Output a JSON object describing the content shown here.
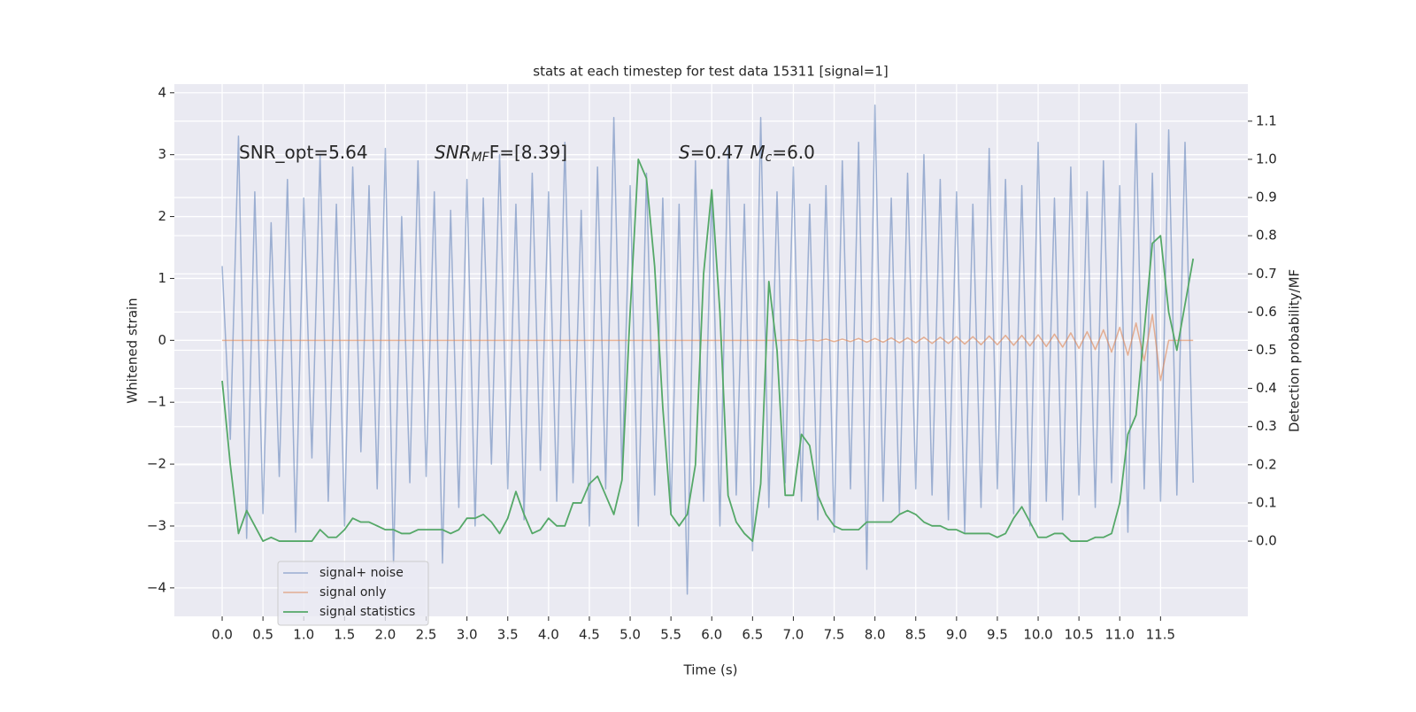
{
  "chart_data": {
    "type": "line",
    "title": "stats at each timestep for test data 15311 [signal=1]",
    "xlabel": "Time (s)",
    "ylabel": "Whitened strain",
    "y2label": "Detection probability/MF",
    "annotations": [
      [
        {
          "text": "SNR_opt=5.64"
        }
      ],
      [
        {
          "text": "SNR",
          "style": "italic"
        },
        {
          "text": "MF",
          "style": "italic-sub"
        },
        {
          "text": "F=[8.39]"
        }
      ],
      [
        {
          "text": "S",
          "style": "italic"
        },
        {
          "text": "=0.47   "
        },
        {
          "text": "M",
          "style": "italic"
        },
        {
          "text": "c",
          "style": "italic-sub"
        },
        {
          "text": "=6.0"
        }
      ]
    ],
    "x": [
      0.0,
      0.1,
      0.2,
      0.3,
      0.4,
      0.5,
      0.6,
      0.7,
      0.8,
      0.9,
      1.0,
      1.1,
      1.2,
      1.3,
      1.4,
      1.5,
      1.6,
      1.7,
      1.8,
      1.9,
      2.0,
      2.1,
      2.2,
      2.3,
      2.4,
      2.5,
      2.6,
      2.7,
      2.8,
      2.9,
      3.0,
      3.1,
      3.2,
      3.3,
      3.4,
      3.5,
      3.6,
      3.7,
      3.8,
      3.9,
      4.0,
      4.1,
      4.2,
      4.3,
      4.4,
      4.5,
      4.6,
      4.7,
      4.8,
      4.9,
      5.0,
      5.1,
      5.2,
      5.3,
      5.4,
      5.5,
      5.6,
      5.7,
      5.8,
      5.9,
      6.0,
      6.1,
      6.2,
      6.3,
      6.4,
      6.5,
      6.6,
      6.7,
      6.8,
      6.9,
      7.0,
      7.1,
      7.2,
      7.3,
      7.4,
      7.5,
      7.6,
      7.7,
      7.8,
      7.9,
      8.0,
      8.1,
      8.2,
      8.3,
      8.4,
      8.5,
      8.6,
      8.7,
      8.8,
      8.9,
      9.0,
      9.1,
      9.2,
      9.3,
      9.4,
      9.5,
      9.6,
      9.7,
      9.8,
      9.9,
      10.0,
      10.1,
      10.2,
      10.3,
      10.4,
      10.5,
      10.6,
      10.7,
      10.8,
      10.9,
      11.0,
      11.1,
      11.2,
      11.3,
      11.4,
      11.5,
      11.6,
      11.7,
      11.8,
      11.9
    ],
    "series": [
      {
        "name": "signal+ noise",
        "color": "#4c72b0",
        "values": [
          1.2,
          -1.6,
          3.3,
          -3.2,
          2.4,
          -2.8,
          1.9,
          -2.2,
          2.6,
          -3.1,
          2.3,
          -1.9,
          3.0,
          -2.6,
          2.2,
          -3.0,
          2.8,
          -1.8,
          2.5,
          -2.4,
          3.1,
          -3.6,
          2.0,
          -2.3,
          2.9,
          -2.2,
          2.4,
          -3.6,
          2.1,
          -2.7,
          2.6,
          -3.0,
          2.3,
          -2.0,
          3.0,
          -2.4,
          2.2,
          -2.9,
          2.7,
          -2.1,
          2.4,
          -2.6,
          3.2,
          -2.3,
          2.1,
          -3.0,
          2.8,
          -2.4,
          3.6,
          -2.2,
          2.5,
          -3.0,
          2.7,
          -2.5,
          2.3,
          -2.8,
          2.2,
          -4.1,
          2.9,
          -2.6,
          2.4,
          -3.0,
          3.1,
          -2.5,
          2.2,
          -3.4,
          3.6,
          -2.7,
          2.4,
          -2.3,
          2.8,
          -2.6,
          2.2,
          -2.9,
          2.5,
          -3.1,
          2.9,
          -2.4,
          3.2,
          -3.7,
          3.8,
          -2.6,
          2.3,
          -2.8,
          2.7,
          -2.4,
          3.0,
          -2.5,
          2.6,
          -2.9,
          2.4,
          -3.1,
          2.2,
          -2.7,
          3.1,
          -2.4,
          2.6,
          -2.8,
          2.5,
          -3.0,
          3.2,
          -2.6,
          2.3,
          -2.9,
          2.8,
          -2.5,
          2.4,
          -2.7,
          2.9,
          -2.3,
          2.5,
          -3.1,
          3.5,
          -2.4,
          2.7,
          -2.6,
          3.4,
          -2.5,
          3.2,
          -2.3
        ]
      },
      {
        "name": "signal only",
        "color": "#dd8452",
        "values": [
          0,
          0,
          0,
          0,
          0,
          0,
          0,
          0,
          0,
          0,
          0,
          0,
          0,
          0,
          0,
          0,
          0,
          0,
          0,
          0,
          0,
          0,
          0,
          0,
          0,
          0,
          0,
          0,
          0,
          0,
          0,
          0,
          0,
          0,
          0,
          0,
          0,
          0,
          0,
          0,
          0,
          0,
          0,
          0,
          0,
          0,
          0,
          0,
          0,
          0,
          0,
          0,
          0,
          0,
          0,
          0,
          0,
          0,
          0,
          0,
          0,
          0,
          0,
          0,
          0,
          0,
          0,
          0,
          0,
          0,
          0.01,
          -0.01,
          0.01,
          -0.01,
          0.02,
          -0.02,
          0.02,
          -0.02,
          0.03,
          -0.03,
          0.03,
          -0.03,
          0.04,
          -0.04,
          0.04,
          -0.04,
          0.05,
          -0.05,
          0.05,
          -0.05,
          0.06,
          -0.06,
          0.06,
          -0.07,
          0.07,
          -0.07,
          0.08,
          -0.08,
          0.08,
          -0.09,
          0.09,
          -0.1,
          0.1,
          -0.11,
          0.12,
          -0.13,
          0.14,
          -0.15,
          0.17,
          -0.19,
          0.21,
          -0.24,
          0.28,
          -0.33,
          0.42,
          -0.65,
          0,
          0,
          0,
          0
        ]
      },
      {
        "name": "signal statistics",
        "color": "#55a868",
        "axis": "y2",
        "values": [
          0.42,
          0.2,
          0.02,
          0.08,
          0.04,
          0.0,
          0.01,
          0.0,
          0.0,
          0.0,
          0.0,
          0.0,
          0.03,
          0.01,
          0.01,
          0.03,
          0.06,
          0.05,
          0.05,
          0.04,
          0.03,
          0.03,
          0.02,
          0.02,
          0.03,
          0.03,
          0.03,
          0.03,
          0.02,
          0.03,
          0.06,
          0.06,
          0.07,
          0.05,
          0.02,
          0.06,
          0.13,
          0.07,
          0.02,
          0.03,
          0.06,
          0.04,
          0.04,
          0.1,
          0.1,
          0.15,
          0.17,
          0.12,
          0.07,
          0.16,
          0.6,
          1.0,
          0.95,
          0.72,
          0.35,
          0.07,
          0.04,
          0.07,
          0.2,
          0.7,
          0.92,
          0.6,
          0.12,
          0.05,
          0.02,
          0.0,
          0.15,
          0.68,
          0.5,
          0.12,
          0.12,
          0.28,
          0.25,
          0.12,
          0.07,
          0.04,
          0.03,
          0.03,
          0.03,
          0.05,
          0.05,
          0.05,
          0.05,
          0.07,
          0.08,
          0.07,
          0.05,
          0.04,
          0.04,
          0.03,
          0.03,
          0.02,
          0.02,
          0.02,
          0.02,
          0.01,
          0.02,
          0.06,
          0.09,
          0.05,
          0.01,
          0.01,
          0.02,
          0.02,
          0.0,
          0.0,
          0.0,
          0.01,
          0.01,
          0.02,
          0.1,
          0.28,
          0.33,
          0.55,
          0.78,
          0.8,
          0.6,
          0.5,
          0.62,
          0.74
        ]
      }
    ],
    "xlim": [
      -0.586,
      12.57
    ],
    "xticks": [
      {
        "value": 0,
        "label": "0.0"
      },
      0.5,
      {
        "value": 1,
        "label": "1.0"
      },
      1.5,
      {
        "value": 2,
        "label": "2.0"
      },
      2.5,
      {
        "value": 3,
        "label": "3.0"
      },
      3.5,
      {
        "value": 4,
        "label": "4.0"
      },
      4.5,
      {
        "value": 5,
        "label": "5.0"
      },
      5.5,
      {
        "value": 6,
        "label": "6.0"
      },
      6.5,
      {
        "value": 7,
        "label": "7.0"
      },
      7.5,
      {
        "value": 8,
        "label": "8.0"
      },
      8.5,
      {
        "value": 9,
        "label": "9.0"
      },
      9.5,
      {
        "value": 10,
        "label": "10.0"
      },
      10.5,
      {
        "value": 11,
        "label": "11.0"
      },
      11.5
    ],
    "ylim": [
      -4.46,
      4.14
    ],
    "yticks": [
      {
        "value": -4,
        "label": "−4"
      },
      {
        "value": -3,
        "label": "−3"
      },
      {
        "value": -2,
        "label": "−2"
      },
      {
        "value": -1,
        "label": "−1"
      },
      0,
      1,
      2,
      3,
      4
    ],
    "y2lim": [
      -0.197,
      1.197
    ],
    "y2ticks": [
      {
        "value": 0,
        "label": "0.0"
      },
      0.1,
      0.2,
      0.3,
      0.4,
      0.5,
      0.6,
      0.7,
      0.8,
      0.9,
      {
        "value": 1,
        "label": "1.0"
      },
      1.1
    ],
    "grid": true,
    "legend": "lower left"
  }
}
